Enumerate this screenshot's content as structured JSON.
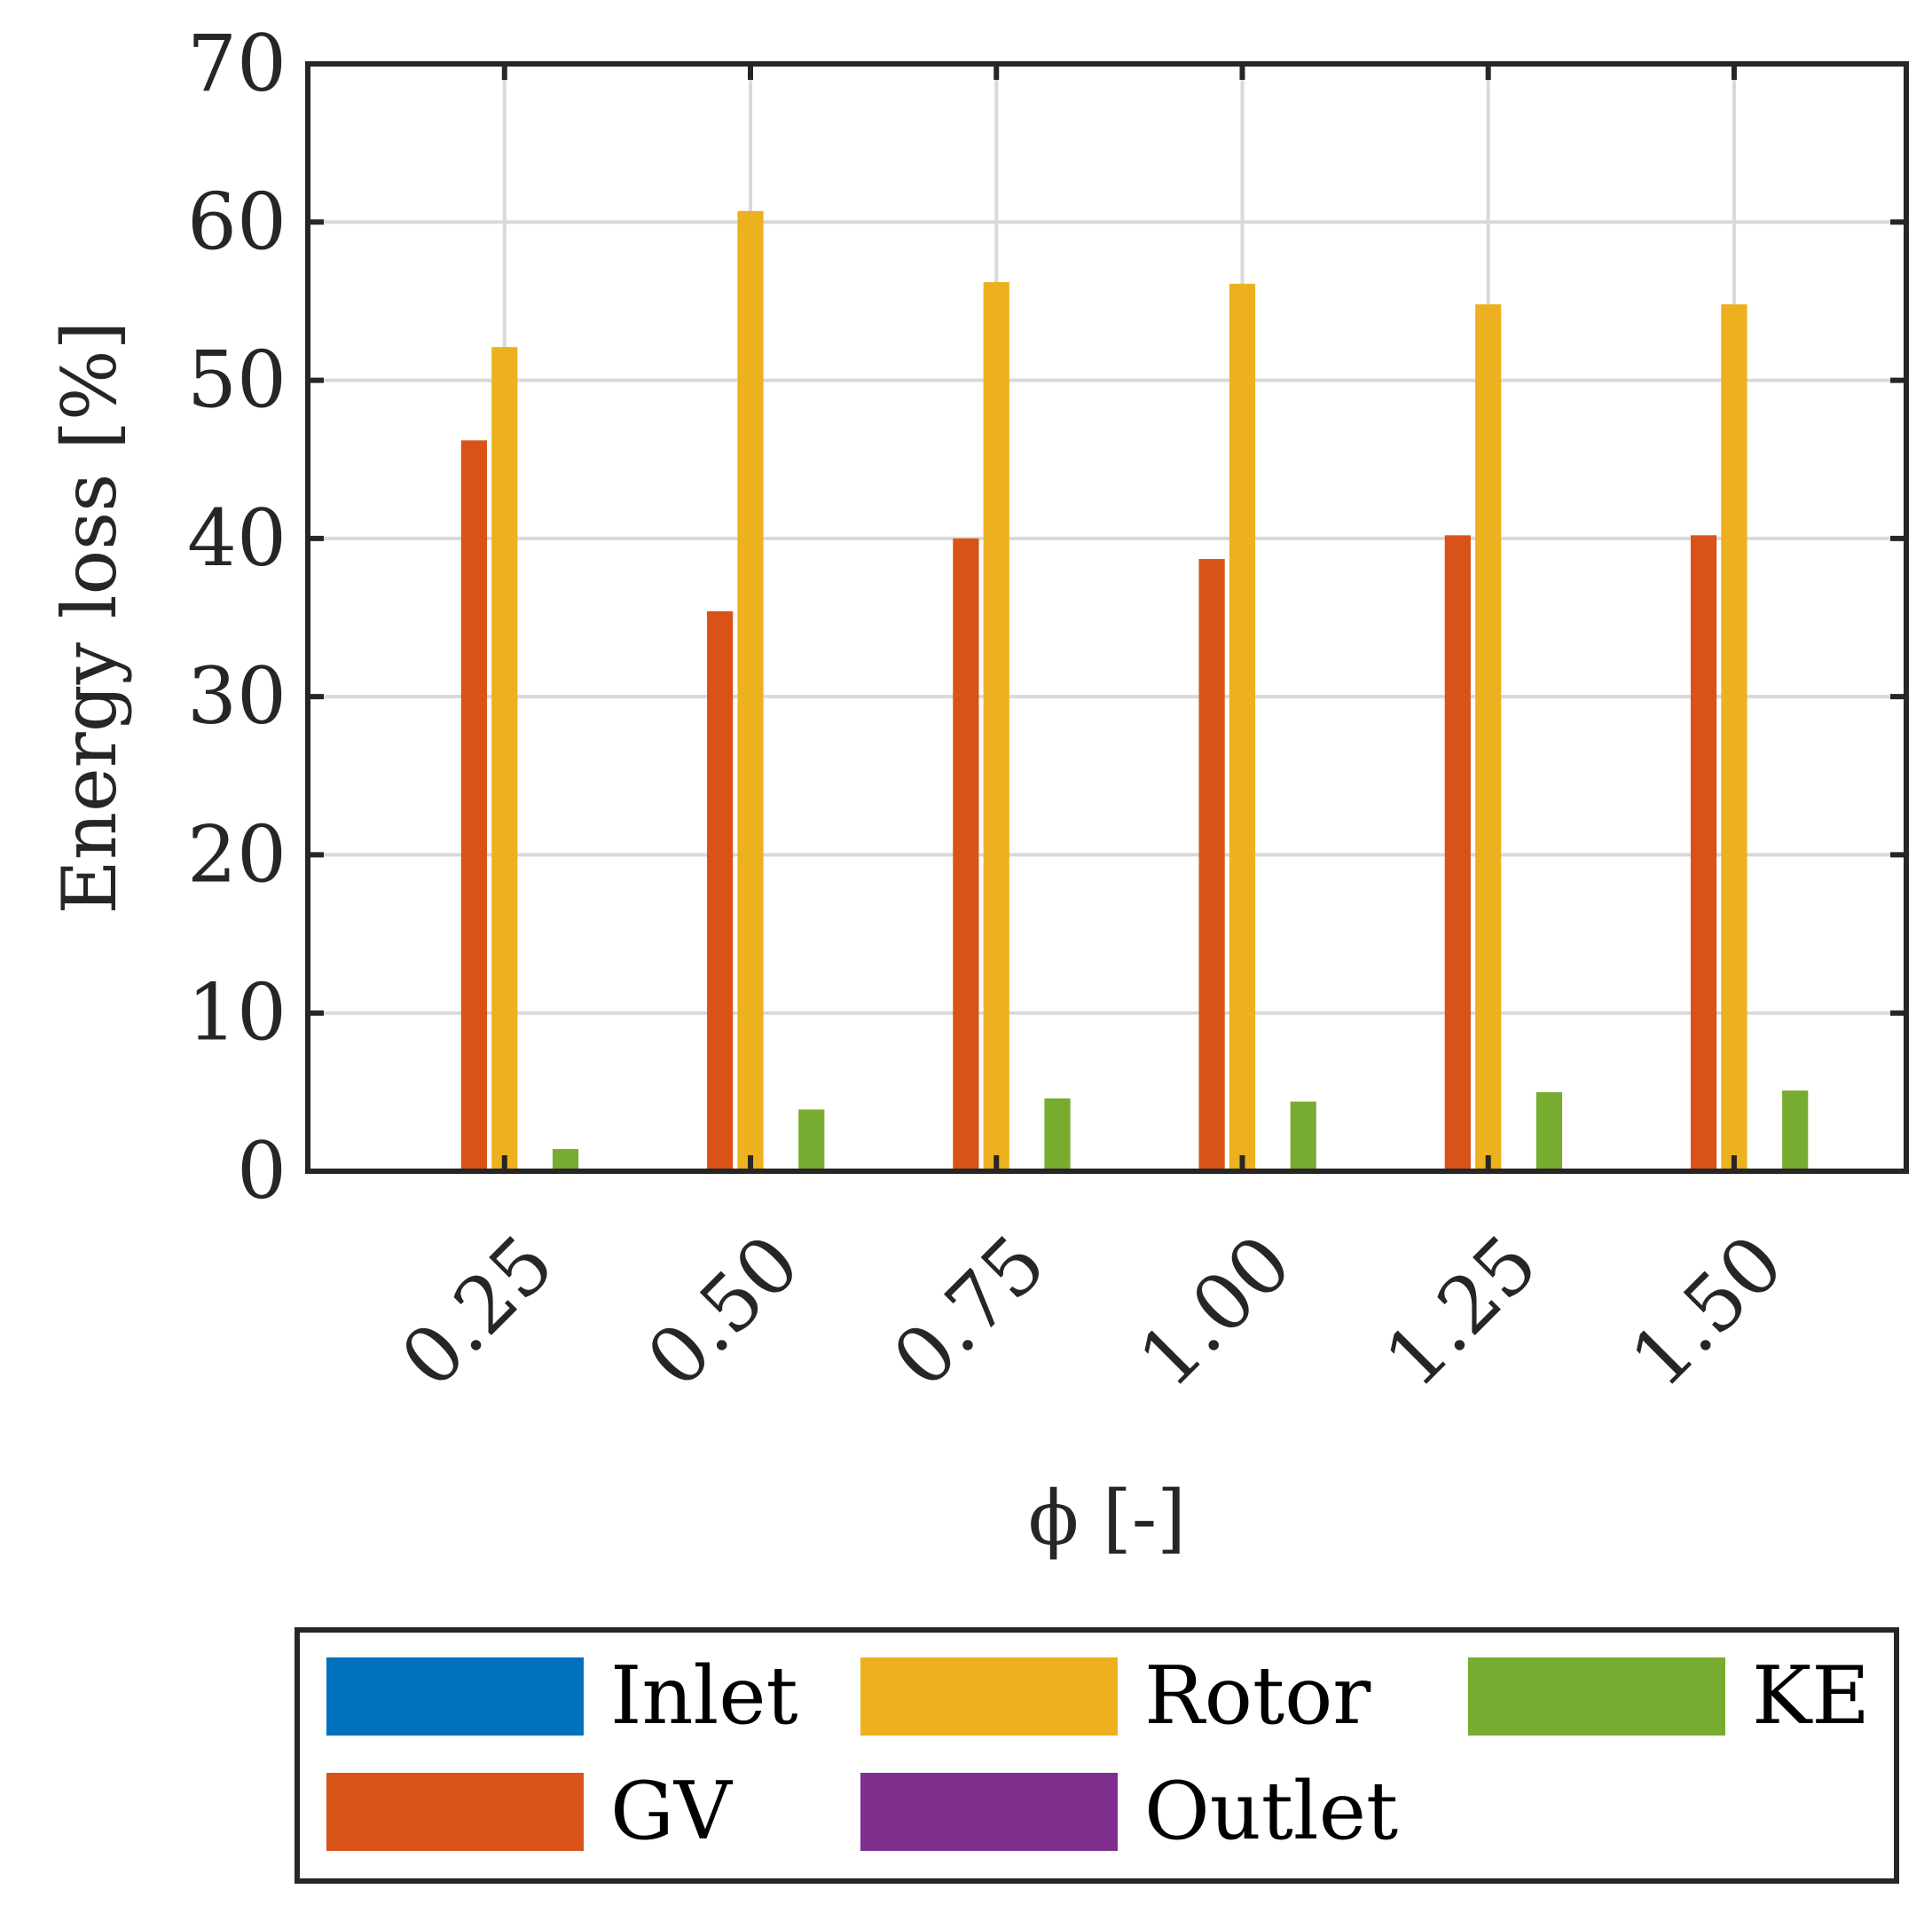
{
  "chart_data": {
    "type": "bar",
    "title": "",
    "xlabel": "ϕ [-]",
    "ylabel": "Energy loss [%]",
    "ylim": [
      0,
      70
    ],
    "yticks": [
      0,
      10,
      20,
      30,
      40,
      50,
      60,
      70
    ],
    "categories": [
      "0.25",
      "0.50",
      "0.75",
      "1.00",
      "1.25",
      "1.50"
    ],
    "grid": true,
    "legend_position": "bottom",
    "series": [
      {
        "name": "Inlet",
        "color": "#0072BD",
        "values": [
          0,
          0,
          0,
          0,
          0,
          0
        ]
      },
      {
        "name": "GV",
        "color": "#D95319",
        "values": [
          46.2,
          35.4,
          40.0,
          38.7,
          40.2,
          40.2
        ]
      },
      {
        "name": "Rotor",
        "color": "#EDB120",
        "values": [
          52.1,
          60.7,
          56.2,
          56.1,
          54.8,
          54.8
        ]
      },
      {
        "name": "Outlet",
        "color": "#7E2F8E",
        "values": [
          0,
          0,
          0,
          0,
          0,
          0
        ]
      },
      {
        "name": "KE",
        "color": "#77AC30",
        "values": [
          1.4,
          3.9,
          4.6,
          4.4,
          5.0,
          5.1
        ]
      }
    ]
  }
}
